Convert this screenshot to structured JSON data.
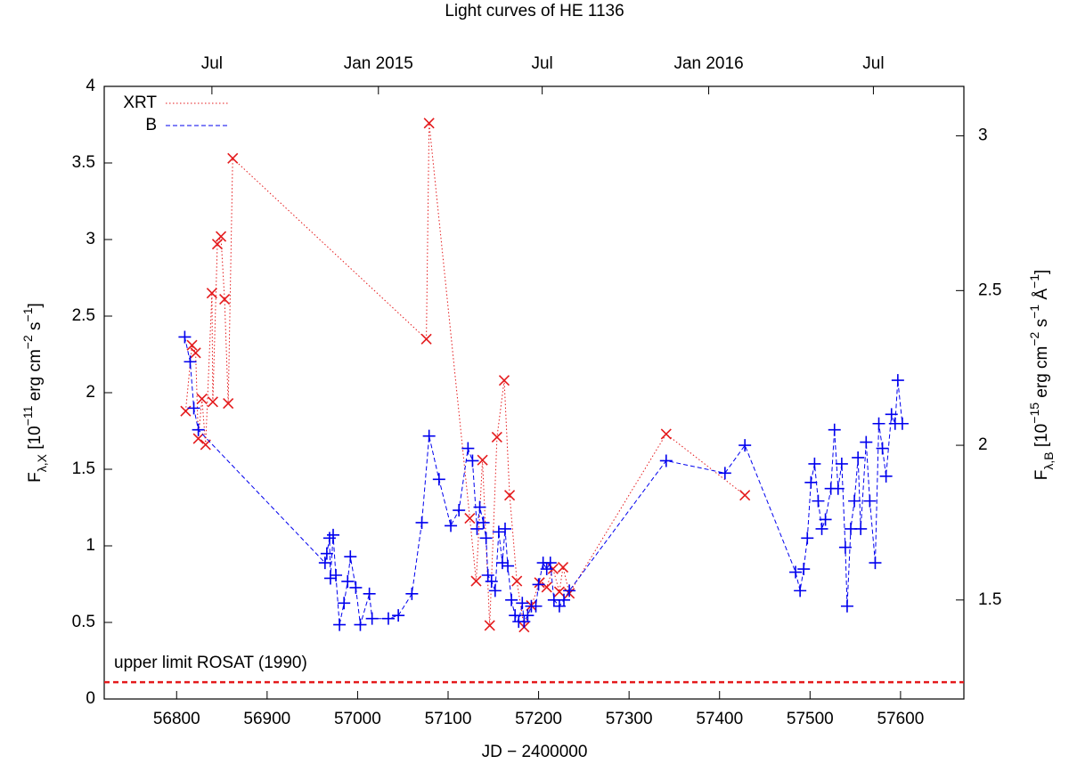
{
  "chart_data": {
    "type": "scatter",
    "title": "Light curves of HE 1136",
    "xlabel": "JD − 2400000",
    "ylabel_parts": [
      {
        "text": "F"
      },
      {
        "text": "λ,X",
        "shift": "sub"
      },
      {
        "text": " [10"
      },
      {
        "text": "−11",
        "shift": "sup"
      },
      {
        "text": " erg cm"
      },
      {
        "text": "−2",
        "shift": "sup"
      },
      {
        "text": " s"
      },
      {
        "text": "−1",
        "shift": "sup"
      },
      {
        "text": "]"
      }
    ],
    "y2label_parts": [
      {
        "text": "F"
      },
      {
        "text": "λ,B",
        "shift": "sub"
      },
      {
        "text": " [10"
      },
      {
        "text": "−15",
        "shift": "sup"
      },
      {
        "text": " erg cm"
      },
      {
        "text": "−2",
        "shift": "sup"
      },
      {
        "text": " s"
      },
      {
        "text": "−1",
        "shift": "sup"
      },
      {
        "text": " Å"
      },
      {
        "text": "−1",
        "shift": "sup"
      },
      {
        "text": "]"
      }
    ],
    "xlim": [
      56720,
      57670
    ],
    "xticks": [
      56800,
      56900,
      57000,
      57100,
      57200,
      57300,
      57400,
      57500,
      57600
    ],
    "x2ticks": [
      {
        "value": 56839,
        "label": "Jul"
      },
      {
        "value": 57023,
        "label": "Jan 2015"
      },
      {
        "value": 57204,
        "label": "Jul"
      },
      {
        "value": 57388,
        "label": "Jan 2016"
      },
      {
        "value": 57570,
        "label": "Jul"
      }
    ],
    "ylim": [
      0,
      4
    ],
    "yticks": [
      0,
      0.5,
      1,
      1.5,
      2,
      2.5,
      3,
      3.5,
      4
    ],
    "y2lim": [
      1.18,
      3.16
    ],
    "y2ticks": [
      1.5,
      2,
      2.5,
      3
    ],
    "legend": "upper left",
    "series": [
      {
        "name": "XRT",
        "color": "#e41a1c",
        "marker": "x",
        "linestyle": "dotted",
        "x": [
          56810,
          56817,
          56821,
          56824,
          56828,
          56832,
          56839,
          56840,
          56845,
          56849,
          56853,
          56857,
          56862,
          57076,
          57079,
          57124,
          57131,
          57138,
          57146,
          57154,
          57162,
          57168,
          57176,
          57184,
          57192,
          57201,
          57209,
          57216,
          57223,
          57227,
          57234,
          57341,
          57428
        ],
        "values": [
          1.88,
          2.31,
          2.26,
          1.7,
          1.96,
          1.66,
          2.65,
          1.94,
          2.97,
          3.02,
          2.61,
          1.93,
          3.53,
          2.35,
          3.76,
          1.18,
          0.77,
          1.56,
          0.48,
          1.71,
          2.08,
          1.33,
          0.77,
          0.47,
          0.61,
          0.76,
          0.73,
          0.85,
          0.7,
          0.86,
          0.69,
          1.73,
          1.33
        ]
      },
      {
        "name": "B",
        "color": "#0000ee",
        "marker": "+",
        "linestyle": "dashed",
        "axis": "y2",
        "x": [
          56809,
          56815,
          56819,
          56824,
          56964,
          56966,
          56969,
          56970,
          56973,
          56976,
          56980,
          56985,
          56989,
          56992,
          56998,
          57003,
          57013,
          57016,
          57034,
          57045,
          57060,
          57071,
          57079,
          57090,
          57103,
          57112,
          57122,
          57127,
          57132,
          57135,
          57139,
          57142,
          57144,
          57148,
          57152,
          57156,
          57160,
          57163,
          57166,
          57170,
          57174,
          57178,
          57182,
          57184,
          57188,
          57192,
          57197,
          57200,
          57205,
          57209,
          57213,
          57217,
          57223,
          57228,
          57234,
          57341,
          57406,
          57428,
          57484,
          57489,
          57493,
          57497,
          57501,
          57505,
          57509,
          57513,
          57517,
          57523,
          57527,
          57531,
          57535,
          57539,
          57541,
          57545,
          57549,
          57553,
          57556,
          57562,
          57566,
          57572,
          57576,
          57580,
          57584,
          57590,
          57594,
          57597,
          57602
        ],
        "values": [
          2.35,
          2.27,
          2.12,
          2.05,
          1.62,
          1.65,
          1.7,
          1.57,
          1.71,
          1.58,
          1.42,
          1.49,
          1.56,
          1.64,
          1.54,
          1.42,
          1.52,
          1.44,
          1.44,
          1.45,
          1.52,
          1.75,
          2.03,
          1.89,
          1.74,
          1.79,
          1.99,
          1.95,
          1.73,
          1.8,
          1.75,
          1.7,
          1.58,
          1.56,
          1.53,
          1.72,
          1.62,
          1.73,
          1.61,
          1.5,
          1.45,
          1.43,
          1.49,
          1.43,
          1.45,
          1.48,
          1.48,
          1.55,
          1.62,
          1.6,
          1.62,
          1.5,
          1.48,
          1.5,
          1.53,
          1.95,
          1.91,
          2.0,
          1.59,
          1.53,
          1.6,
          1.7,
          1.88,
          1.94,
          1.82,
          1.73,
          1.76,
          1.86,
          2.05,
          1.86,
          1.94,
          1.67,
          1.48,
          1.73,
          1.82,
          1.96,
          1.73,
          2.01,
          1.82,
          1.62,
          2.07,
          1.99,
          1.9,
          2.1,
          2.07,
          2.21,
          2.07
        ]
      }
    ],
    "hline": {
      "value": 0.11,
      "color": "#e41a1c",
      "label": "upper limit ROSAT (1990)"
    }
  }
}
